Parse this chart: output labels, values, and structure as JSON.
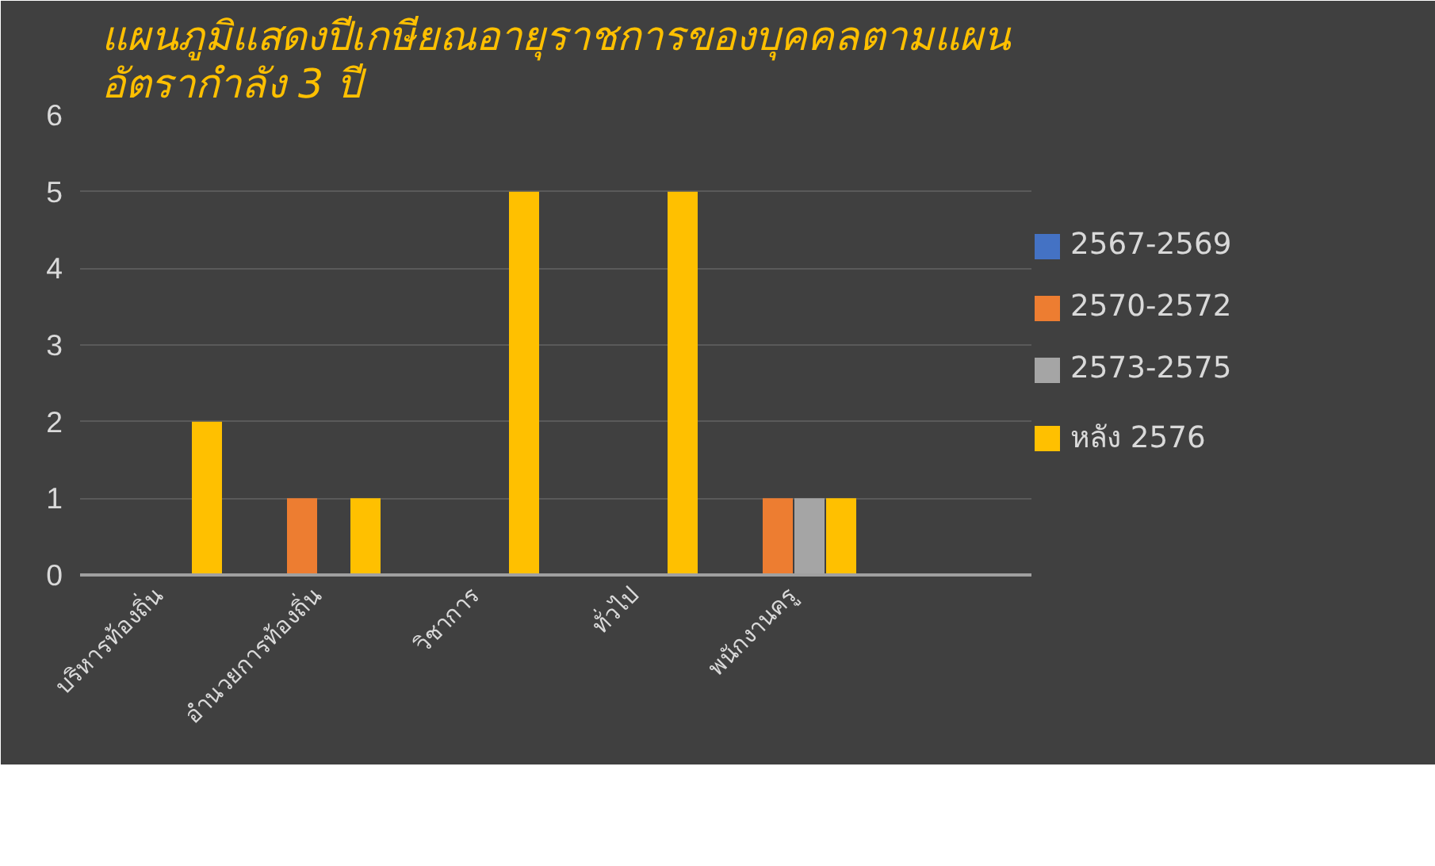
{
  "chart_data": {
    "type": "bar",
    "title": "แผนภูมิแสดงปีเกษียณอายุราชการของบุคคลตามแผน\nอัตรากำลัง 3 ปี",
    "categories": [
      "บริหารท้องถิ่น",
      "อำนวยการท้องถิ่น",
      "วิชาการ",
      "ทั่วไป",
      "พนักงานครู",
      null
    ],
    "series": [
      {
        "name": "2567-2569",
        "color": "#4472c4",
        "values": [
          null,
          null,
          null,
          null,
          null,
          null
        ]
      },
      {
        "name": "2570-2572",
        "color": "#ed7d31",
        "values": [
          null,
          1,
          null,
          null,
          1,
          null
        ]
      },
      {
        "name": "2573-2575",
        "color": "#a5a5a5",
        "values": [
          null,
          null,
          null,
          null,
          1,
          null
        ]
      },
      {
        "name": "หลัง 2576",
        "color": "#ffc000",
        "values": [
          2,
          1,
          5,
          5,
          1,
          null
        ]
      }
    ],
    "ylim": [
      0,
      6
    ],
    "yticks": [
      0,
      1,
      2,
      3,
      4,
      5,
      6
    ],
    "grid": "y",
    "legend": "right"
  }
}
